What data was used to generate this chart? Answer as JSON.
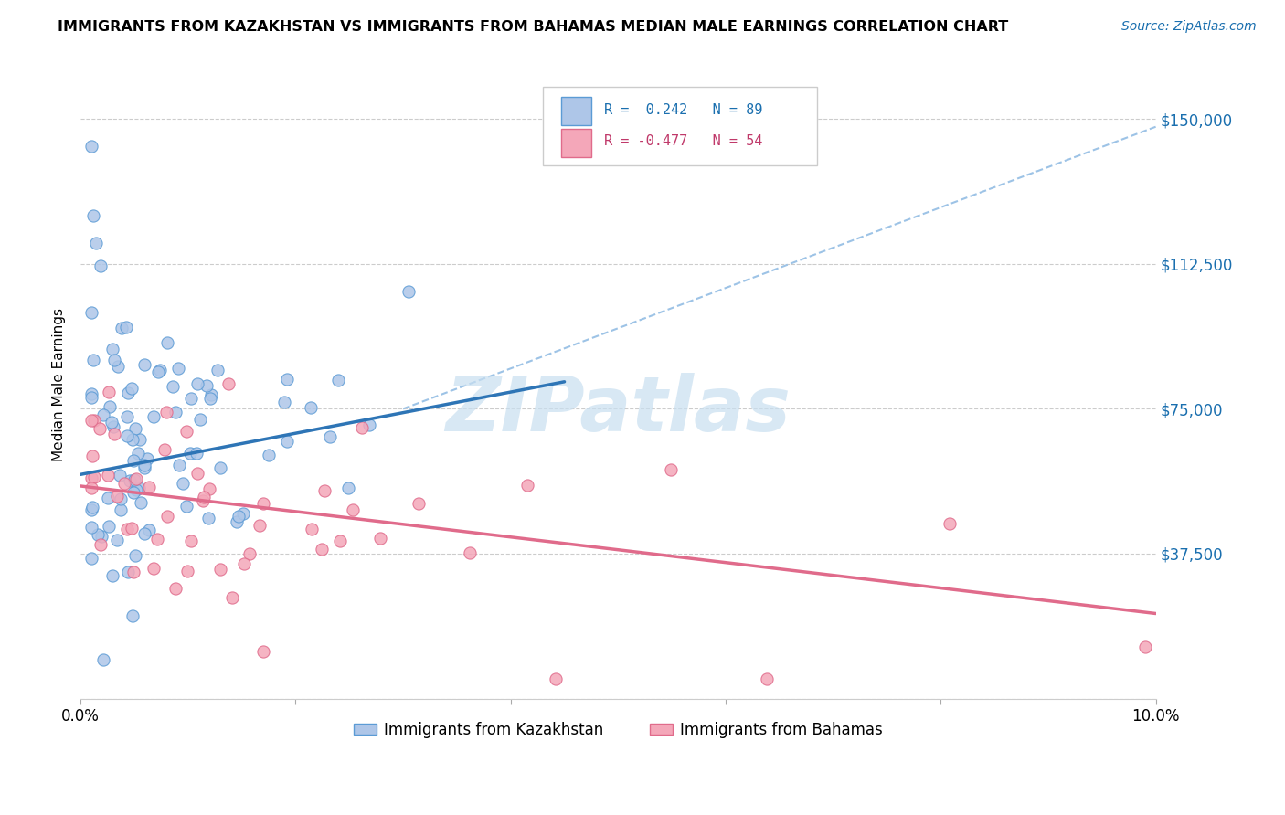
{
  "title": "IMMIGRANTS FROM KAZAKHSTAN VS IMMIGRANTS FROM BAHAMAS MEDIAN MALE EARNINGS CORRELATION CHART",
  "source": "Source: ZipAtlas.com",
  "ylabel": "Median Male Earnings",
  "legend_kaz": "Immigrants from Kazakhstan",
  "legend_bah": "Immigrants from Bahamas",
  "R_kaz": 0.242,
  "N_kaz": 89,
  "R_bah": -0.477,
  "N_bah": 54,
  "color_kaz_fill": "#aec6e8",
  "color_kaz_edge": "#5b9bd5",
  "color_kaz_line": "#2e75b6",
  "color_bah_fill": "#f4a7b9",
  "color_bah_edge": "#e06b8b",
  "color_bah_line": "#e06b8b",
  "color_dashed": "#9dc3e6",
  "xmin": 0.0,
  "xmax": 0.1,
  "ymin": 0,
  "ymax": 162500,
  "yticks": [
    0,
    37500,
    75000,
    112500,
    150000
  ],
  "ytick_labels": [
    "",
    "$37,500",
    "$75,000",
    "$112,500",
    "$150,000"
  ],
  "kaz_line_x0": 0.0,
  "kaz_line_y0": 58000,
  "kaz_line_x1": 0.045,
  "kaz_line_y1": 82000,
  "dashed_line_x0": 0.03,
  "dashed_line_y0": 75000,
  "dashed_line_x1": 0.1,
  "dashed_line_y1": 148000,
  "bah_line_x0": 0.0,
  "bah_line_y0": 55000,
  "bah_line_x1": 0.1,
  "bah_line_y1": 22000,
  "title_fontsize": 11.5,
  "source_fontsize": 10,
  "ylabel_fontsize": 11,
  "tick_fontsize": 12,
  "legend_fontsize": 11,
  "watermark_text": "ZIPatlas",
  "watermark_fontsize": 60
}
